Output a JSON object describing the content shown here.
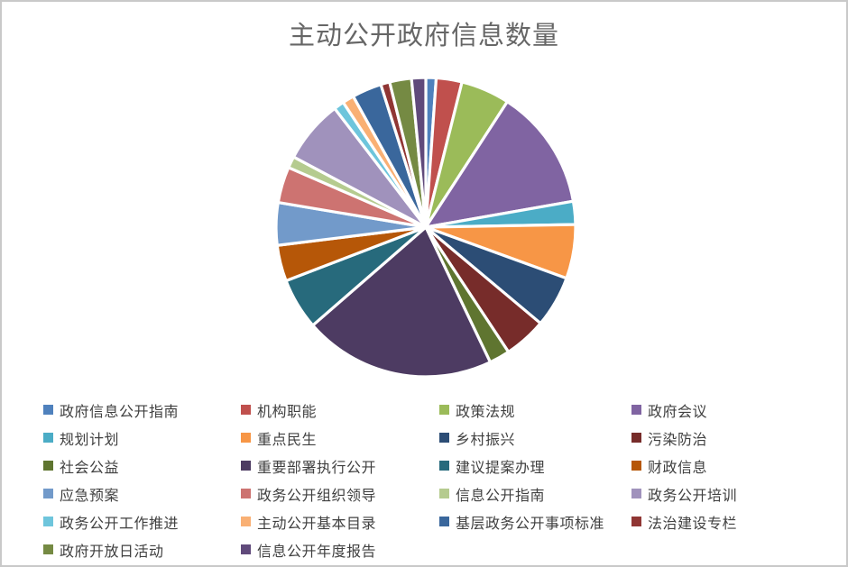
{
  "title": "主动公开政府信息数量",
  "colors": {
    "title_text": "#666666",
    "legend_text": "#404040",
    "canvas_border": "#c9c9c9",
    "slice_separator": "#ffffff",
    "background": "#ffffff"
  },
  "chart_data": {
    "type": "pie",
    "title": "主动公开政府信息数量",
    "legend_position": "bottom",
    "legend_columns": 4,
    "start_angle_deg": 0,
    "direction": "clockwise",
    "data_labels_shown": false,
    "series": [
      {
        "label": "政府信息公开指南",
        "color": "#4F81BD",
        "angle_deg": 4.0,
        "percent_est": 1.1
      },
      {
        "label": "机构职能",
        "color": "#C0504D",
        "angle_deg": 10.0,
        "percent_est": 2.8
      },
      {
        "label": "政策法规",
        "color": "#9BBB59",
        "angle_deg": 19.0,
        "percent_est": 5.3
      },
      {
        "label": "政府会议",
        "color": "#8064A2",
        "angle_deg": 47.0,
        "percent_est": 13.1
      },
      {
        "label": "规划计划",
        "color": "#4BACC6",
        "angle_deg": 9.0,
        "percent_est": 2.5
      },
      {
        "label": "重点民生",
        "color": "#F79646",
        "angle_deg": 21.0,
        "percent_est": 5.8
      },
      {
        "label": "乡村振兴",
        "color": "#2C4D75",
        "angle_deg": 20.0,
        "percent_est": 5.6
      },
      {
        "label": "污染防治",
        "color": "#772C2A",
        "angle_deg": 16.5,
        "percent_est": 4.6
      },
      {
        "label": "社会公益",
        "color": "#5F7530",
        "angle_deg": 8.0,
        "percent_est": 2.2
      },
      {
        "label": "重要部署执行公开",
        "color": "#4D3B62",
        "angle_deg": 74.5,
        "percent_est": 20.7
      },
      {
        "label": "建议提案办理",
        "color": "#276A7C",
        "angle_deg": 20.0,
        "percent_est": 5.6
      },
      {
        "label": "财政信息",
        "color": "#B65708",
        "angle_deg": 14.0,
        "percent_est": 3.9
      },
      {
        "label": "应急预案",
        "color": "#729ACA",
        "angle_deg": 16.5,
        "percent_est": 4.6
      },
      {
        "label": "政务公开组织领导",
        "color": "#CD7371",
        "angle_deg": 14.0,
        "percent_est": 3.9
      },
      {
        "label": "信息公开指南",
        "color": "#B5CB8F",
        "angle_deg": 4.5,
        "percent_est": 1.3
      },
      {
        "label": "政务公开培训",
        "color": "#A092BC",
        "angle_deg": 24.5,
        "percent_est": 6.8
      },
      {
        "label": "政务公开工作推进",
        "color": "#6EC5DC",
        "angle_deg": 4.0,
        "percent_est": 1.1
      },
      {
        "label": "主动公开基本目录",
        "color": "#F9B074",
        "angle_deg": 4.5,
        "percent_est": 1.3
      },
      {
        "label": "基层政务公开事项标准",
        "color": "#3A679C",
        "angle_deg": 11.5,
        "percent_est": 3.2
      },
      {
        "label": "法治建设专栏",
        "color": "#903634",
        "angle_deg": 3.5,
        "percent_est": 1.0
      },
      {
        "label": "政府开放日活动",
        "color": "#758A43",
        "angle_deg": 8.5,
        "percent_est": 2.4
      },
      {
        "label": "信息公开年度报告",
        "color": "#604A7B",
        "angle_deg": 5.5,
        "percent_est": 1.5
      }
    ]
  }
}
